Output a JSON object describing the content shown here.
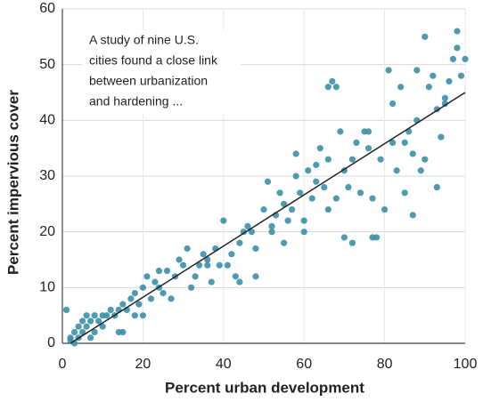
{
  "chart_data": {
    "type": "scatter",
    "xlabel": "Percent urban development",
    "ylabel": "Percent impervious cover",
    "annotation": [
      "A study of nine U.S.",
      "cities found a close link",
      "between urbanization",
      "and hardening ..."
    ],
    "xlim": [
      0,
      100
    ],
    "ylim": [
      0,
      60
    ],
    "xticks": [
      0,
      20,
      40,
      60,
      80,
      100
    ],
    "yticks": [
      0,
      10,
      20,
      30,
      40,
      50,
      60
    ],
    "grid": true,
    "color": "#3b8fa6",
    "trend_color": "#222222",
    "trend_line": {
      "x": [
        2,
        100
      ],
      "y": [
        0,
        45
      ]
    },
    "x": [
      1,
      2,
      2,
      3,
      3,
      4,
      4,
      5,
      5,
      6,
      6,
      7,
      7,
      8,
      8,
      9,
      10,
      10,
      11,
      12,
      13,
      14,
      14,
      15,
      16,
      17,
      18,
      19,
      20,
      21,
      22,
      23,
      24,
      25,
      26,
      27,
      28,
      29,
      30,
      31,
      32,
      33,
      34,
      35,
      36,
      37,
      38,
      39,
      40,
      41,
      42,
      43,
      44,
      45,
      46,
      47,
      48,
      50,
      51,
      52,
      53,
      54,
      55,
      56,
      57,
      58,
      59,
      60,
      61,
      62,
      63,
      64,
      65,
      66,
      67,
      68,
      69,
      70,
      71,
      72,
      73,
      74,
      75,
      76,
      77,
      78,
      79,
      80,
      81,
      82,
      83,
      84,
      85,
      86,
      87,
      88,
      89,
      90,
      91,
      92,
      93,
      94,
      95,
      96,
      97,
      98,
      99,
      100,
      98,
      88,
      95,
      82,
      70,
      72,
      66,
      60,
      48,
      55,
      52,
      63,
      76,
      85,
      87,
      90,
      93,
      66,
      68,
      77,
      15,
      18,
      20,
      24,
      36,
      44,
      58
    ],
    "y": [
      6,
      1,
      0.5,
      2,
      0,
      1,
      3,
      2,
      4,
      3,
      5,
      1,
      4,
      2,
      5,
      4,
      5,
      3,
      5,
      6,
      5,
      2,
      6,
      7,
      6,
      8,
      9,
      7,
      10,
      12,
      8,
      11,
      10,
      9,
      13,
      8,
      12,
      15,
      14,
      17,
      10,
      12,
      14,
      16,
      15,
      11,
      17,
      14,
      22,
      14,
      16,
      12,
      18,
      20,
      21,
      20,
      17,
      24,
      29,
      21,
      23,
      27,
      25,
      22,
      24,
      30,
      27,
      20,
      31,
      26,
      29,
      35,
      28,
      33,
      47,
      26,
      38,
      31,
      28,
      33,
      36,
      27,
      38,
      35,
      26,
      19,
      33,
      24,
      49,
      36,
      31,
      46,
      27,
      38,
      34,
      40,
      31,
      55,
      46,
      48,
      42,
      37,
      43,
      47,
      51,
      56,
      48,
      51,
      53,
      49,
      44,
      43,
      19,
      18,
      24,
      22,
      12,
      18,
      20,
      32,
      38,
      36,
      23,
      33,
      28,
      46,
      46,
      19,
      2,
      5,
      5,
      13,
      14,
      11,
      34
    ]
  }
}
